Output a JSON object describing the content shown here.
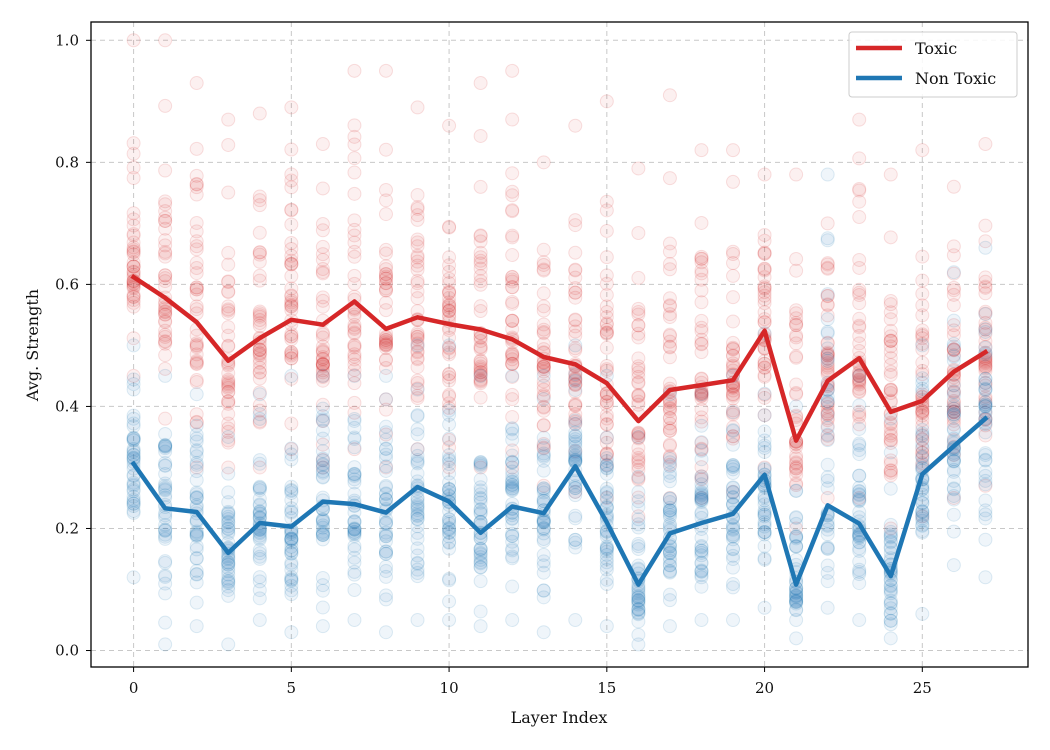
{
  "chart_data": {
    "type": "line",
    "title": "",
    "xlabel": "Layer Index",
    "ylabel": "Avg. Strength",
    "xlim": [
      -1.35,
      28.35
    ],
    "ylim": [
      -0.027,
      1.03
    ],
    "grid": true,
    "legend_position": "top-right",
    "x_ticks": [
      0,
      5,
      10,
      15,
      20,
      25
    ],
    "y_ticks": [
      0.0,
      0.2,
      0.4,
      0.6,
      0.8,
      1.0
    ],
    "x_tick_labels": [
      "0",
      "5",
      "10",
      "15",
      "20",
      "25"
    ],
    "y_tick_labels": [
      "0.0",
      "0.2",
      "0.4",
      "0.6",
      "0.8",
      "1.0"
    ],
    "x": [
      0,
      1,
      2,
      3,
      4,
      5,
      6,
      7,
      8,
      9,
      10,
      11,
      12,
      13,
      14,
      15,
      16,
      17,
      18,
      19,
      20,
      21,
      22,
      23,
      24,
      25,
      26,
      27
    ],
    "series": [
      {
        "name": "Toxic",
        "color": "#d62728",
        "values": [
          0.612,
          0.578,
          0.538,
          0.475,
          0.512,
          0.542,
          0.534,
          0.572,
          0.527,
          0.546,
          0.535,
          0.526,
          0.51,
          0.481,
          0.469,
          0.438,
          0.376,
          0.427,
          0.435,
          0.443,
          0.524,
          0.344,
          0.442,
          0.479,
          0.391,
          0.409,
          0.457,
          0.489
        ],
        "scatter_spread": {
          "low": [
            0.45,
            0.38,
            0.3,
            0.3,
            0.3,
            0.33,
            0.3,
            0.33,
            0.3,
            0.33,
            0.3,
            0.3,
            0.3,
            0.27,
            0.26,
            0.25,
            0.22,
            0.25,
            0.25,
            0.26,
            0.3,
            0.2,
            0.25,
            0.25,
            0.2,
            0.22,
            0.25,
            0.27
          ],
          "high": [
            1.0,
            1.0,
            0.93,
            0.87,
            0.88,
            0.89,
            0.83,
            0.95,
            0.95,
            0.89,
            0.86,
            0.93,
            0.95,
            0.8,
            0.86,
            0.9,
            0.79,
            0.91,
            0.82,
            0.82,
            0.78,
            0.78,
            0.7,
            0.87,
            0.78,
            0.82,
            0.76,
            0.83
          ]
        }
      },
      {
        "name": "Non Toxic",
        "color": "#1f77b4",
        "values": [
          0.306,
          0.233,
          0.227,
          0.16,
          0.209,
          0.203,
          0.244,
          0.24,
          0.226,
          0.268,
          0.244,
          0.193,
          0.236,
          0.225,
          0.302,
          0.21,
          0.108,
          0.192,
          0.209,
          0.224,
          0.288,
          0.108,
          0.238,
          0.208,
          0.122,
          0.289,
          0.335,
          0.38
        ],
        "scatter_spread": {
          "low": [
            0.12,
            0.01,
            0.04,
            0.01,
            0.05,
            0.03,
            0.04,
            0.05,
            0.03,
            0.05,
            0.05,
            0.04,
            0.05,
            0.03,
            0.05,
            0.04,
            0.01,
            0.04,
            0.05,
            0.05,
            0.07,
            0.02,
            0.07,
            0.05,
            0.02,
            0.06,
            0.14,
            0.12
          ],
          "high": [
            0.5,
            0.45,
            0.42,
            0.35,
            0.42,
            0.45,
            0.45,
            0.45,
            0.45,
            0.5,
            0.5,
            0.45,
            0.45,
            0.45,
            0.5,
            0.45,
            0.35,
            0.42,
            0.42,
            0.45,
            0.52,
            0.4,
            0.78,
            0.45,
            0.38,
            0.5,
            0.62,
            0.66
          ]
        }
      }
    ]
  }
}
